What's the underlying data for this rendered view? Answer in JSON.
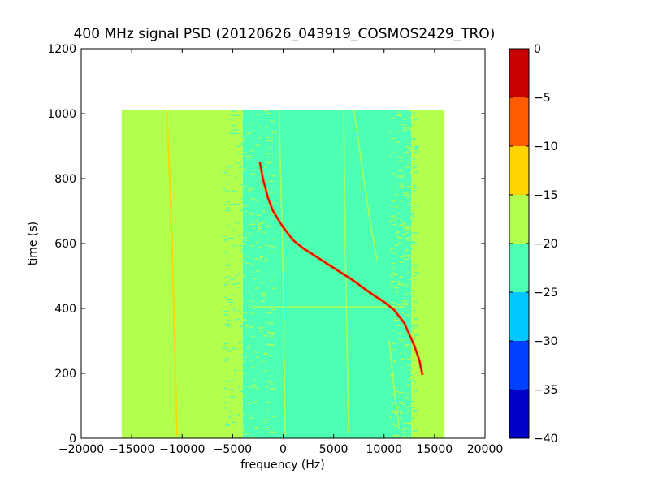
{
  "chart_data": {
    "type": "heatmap",
    "title": "400 MHz signal PSD (20120626_043919_COSMOS2429_TRO)",
    "xlabel": "frequency (Hz)",
    "ylabel": "time (s)",
    "xlim": [
      -20000,
      20000
    ],
    "ylim": [
      0,
      1200
    ],
    "xticks": [
      -20000,
      -15000,
      -10000,
      -5000,
      0,
      5000,
      10000,
      15000,
      20000
    ],
    "yticks": [
      0,
      200,
      400,
      600,
      800,
      1000,
      1200
    ],
    "data_extent": {
      "x": [
        -16000,
        16000
      ],
      "y": [
        0,
        1010
      ]
    },
    "colorbar": {
      "levels": [
        -40,
        -35,
        -30,
        -25,
        -20,
        -15,
        -10,
        -5,
        0
      ],
      "ticks": [
        0,
        -5,
        -10,
        -15,
        -20,
        -25,
        -30,
        -35,
        -40
      ],
      "colors": [
        "#0000c8",
        "#0040ff",
        "#00c8ff",
        "#4dffb3",
        "#b3ff4d",
        "#ffd400",
        "#ff5a00",
        "#c80000"
      ]
    },
    "background_levels": [
      {
        "x": [
          -16000,
          -4000
        ],
        "level": -17.5
      },
      {
        "x": [
          -4000,
          12700
        ],
        "level": -22.5
      },
      {
        "x": [
          12700,
          16000
        ],
        "level": -17.5
      }
    ],
    "main_trace": {
      "level": -2.5,
      "points": [
        [
          -2300,
          850
        ],
        [
          -2000,
          800
        ],
        [
          -1500,
          740
        ],
        [
          -1000,
          700
        ],
        [
          -500,
          675
        ],
        [
          0,
          650
        ],
        [
          1000,
          610
        ],
        [
          2000,
          585
        ],
        [
          3000,
          565
        ],
        [
          4000,
          545
        ],
        [
          5000,
          525
        ],
        [
          6000,
          505
        ],
        [
          7000,
          485
        ],
        [
          8000,
          462
        ],
        [
          9000,
          440
        ],
        [
          10000,
          420
        ],
        [
          11000,
          395
        ],
        [
          12000,
          355
        ],
        [
          12500,
          320
        ],
        [
          13000,
          285
        ],
        [
          13500,
          240
        ],
        [
          13800,
          195
        ]
      ]
    },
    "faint_traces": [
      {
        "level": -12.5,
        "points": [
          [
            -11500,
            1010
          ],
          [
            -11000,
            600
          ],
          [
            -10500,
            10
          ]
        ]
      },
      {
        "level": -17.5,
        "points": [
          [
            6000,
            1010
          ],
          [
            6200,
            500
          ],
          [
            6500,
            10
          ]
        ]
      },
      {
        "level": -17.5,
        "points": [
          [
            7000,
            1010
          ],
          [
            8000,
            800
          ],
          [
            8700,
            650
          ],
          [
            9300,
            550
          ]
        ]
      },
      {
        "level": -17.5,
        "points": [
          [
            -400,
            1010
          ],
          [
            0,
            500
          ],
          [
            200,
            10
          ]
        ]
      },
      {
        "level": -17.5,
        "points": [
          [
            10500,
            300
          ],
          [
            11000,
            150
          ],
          [
            11500,
            30
          ]
        ]
      }
    ],
    "horizontal_band": {
      "y": 405,
      "x": [
        -3000,
        12000
      ],
      "level": -17.5
    }
  }
}
